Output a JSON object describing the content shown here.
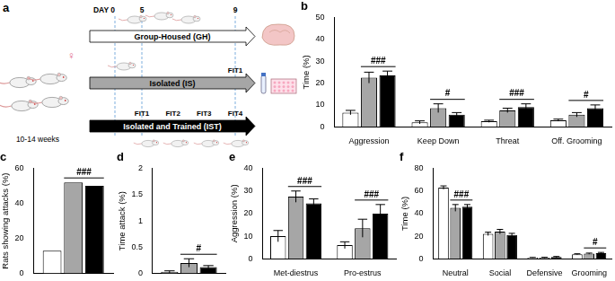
{
  "diagram": {
    "title": "a",
    "day_labels": [
      "DAY 0",
      "5",
      "9"
    ],
    "age": "10-14 weeks",
    "sex": "♀",
    "groups": [
      {
        "label": "Group-Housed (GH)",
        "color": "#ffffff",
        "text_color": "#000000"
      },
      {
        "label": "Isolated (IS)",
        "color": "#a6a6a6",
        "text_color": "#000000",
        "tests": [
          "FIT1"
        ]
      },
      {
        "label": "Isolated and Trained (IST)",
        "color": "#000000",
        "text_color": "#ffffff",
        "tests": [
          "FIT1",
          "FIT2",
          "FIT3",
          "FIT4"
        ]
      }
    ]
  },
  "chart_data": [
    {
      "type": "bar",
      "title": "b",
      "y_label": "Time (%)",
      "categories": [
        "Aggression",
        "Keep Down",
        "Threat",
        "Off. Grooming"
      ],
      "series": [
        {
          "name": "GH",
          "color": "#ffffff",
          "values": [
            6.5,
            2,
            2.5,
            3
          ],
          "errors": [
            1,
            0.7,
            0.5,
            0.5
          ]
        },
        {
          "name": "IS",
          "color": "#a6a6a6",
          "values": [
            22.5,
            8.5,
            7.5,
            5.5
          ],
          "errors": [
            2.5,
            2,
            1,
            1
          ]
        },
        {
          "name": "IST",
          "color": "#000000",
          "values": [
            23.5,
            5.5,
            9,
            8.5
          ],
          "errors": [
            2,
            1,
            1.5,
            1.5
          ]
        }
      ],
      "annotations": [
        "###",
        "#",
        "###",
        "#"
      ],
      "ylim": [
        0,
        50
      ],
      "yticks": [
        0,
        10,
        20,
        30,
        40,
        50
      ],
      "grid": false
    },
    {
      "type": "bar",
      "title": "c",
      "y_label": "Rats showing attacks (%)",
      "categories": [
        null
      ],
      "series": [
        {
          "name": "GH",
          "color": "#ffffff",
          "values": [
            13
          ]
        },
        {
          "name": "IS",
          "color": "#a6a6a6",
          "values": [
            52
          ]
        },
        {
          "name": "IST",
          "color": "#000000",
          "values": [
            50
          ]
        }
      ],
      "annotations": [
        "###"
      ],
      "ylim": [
        0,
        60
      ],
      "yticks": [
        0,
        20,
        40,
        60
      ],
      "grid": false,
      "tick_labels": "y"
    },
    {
      "type": "bar",
      "title": "d",
      "y_label": "Time attack (%)",
      "categories": [
        null
      ],
      "series": [
        {
          "name": "GH",
          "color": "#ffffff",
          "values": [
            0.03
          ],
          "errors": [
            0.02
          ]
        },
        {
          "name": "IS",
          "color": "#a6a6a6",
          "values": [
            0.2
          ],
          "errors": [
            0.08
          ]
        },
        {
          "name": "IST",
          "color": "#000000",
          "values": [
            0.12
          ],
          "errors": [
            0.03
          ]
        }
      ],
      "annotations": [
        "#"
      ],
      "ylim": [
        0,
        2
      ],
      "yticks": [
        0,
        0.5,
        1,
        1.5,
        2
      ],
      "grid": false,
      "tick_labels": "y"
    },
    {
      "type": "bar",
      "title": "e",
      "y_label": "Aggression (%)",
      "categories": [
        "Met-diestrus",
        "Pro-estrus"
      ],
      "series": [
        {
          "name": "GH",
          "color": "#ffffff",
          "values": [
            10,
            6
          ],
          "errors": [
            2.5,
            1.5
          ]
        },
        {
          "name": "IS",
          "color": "#a6a6a6",
          "values": [
            27.5,
            13.5
          ],
          "errors": [
            2.5,
            4
          ]
        },
        {
          "name": "IST",
          "color": "#000000",
          "values": [
            24.5,
            20
          ],
          "errors": [
            2,
            4
          ]
        }
      ],
      "annotations": [
        "###",
        "###"
      ],
      "ylim": [
        0,
        40
      ],
      "yticks": [
        0,
        10,
        20,
        30,
        40
      ],
      "grid": false
    },
    {
      "type": "bar",
      "title": "f",
      "y_label": "Time (%)",
      "categories": [
        "Neutral",
        "Social",
        "Defensive",
        "Grooming"
      ],
      "series": [
        {
          "name": "GH",
          "color": "#ffffff",
          "values": [
            63,
            22,
            1,
            4
          ],
          "errors": [
            1.5,
            1.5,
            0.2,
            0.4
          ]
        },
        {
          "name": "IS",
          "color": "#a6a6a6",
          "values": [
            45,
            24,
            1,
            4.5
          ],
          "errors": [
            3,
            2,
            0.3,
            0.5
          ]
        },
        {
          "name": "IST",
          "color": "#000000",
          "values": [
            46,
            21,
            1.5,
            5
          ],
          "errors": [
            2,
            1.5,
            0.5,
            0.6
          ]
        }
      ],
      "annotations": [
        "###",
        null,
        null,
        "#"
      ],
      "ylim": [
        0,
        80
      ],
      "yticks": [
        0,
        20,
        40,
        60,
        80
      ],
      "grid": false
    }
  ]
}
